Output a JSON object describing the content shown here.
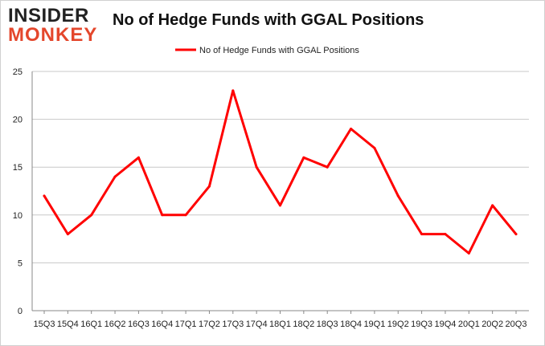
{
  "brand": {
    "logo_top": "INSIDER",
    "logo_bottom": "MONKEY"
  },
  "colors": {
    "series": "#ff0000",
    "grid": "#c8c8c8",
    "axis": "#888888",
    "logo_accent": "#e4472c"
  },
  "chart_data": {
    "type": "line",
    "title": "No of Hedge Funds with GGAL Positions",
    "xlabel": "",
    "ylabel": "",
    "ylim": [
      0,
      25
    ],
    "yticks": [
      0,
      5,
      10,
      15,
      20,
      25
    ],
    "grid": true,
    "legend_position": "top-center",
    "categories": [
      "15Q3",
      "15Q4",
      "16Q1",
      "16Q2",
      "16Q3",
      "16Q4",
      "17Q1",
      "17Q2",
      "17Q3",
      "17Q4",
      "18Q1",
      "18Q2",
      "18Q3",
      "18Q4",
      "19Q1",
      "19Q2",
      "19Q3",
      "19Q4",
      "20Q1",
      "20Q2",
      "20Q3"
    ],
    "series": [
      {
        "name": "No of Hedge Funds with GGAL Positions",
        "color": "#ff0000",
        "values": [
          12,
          8,
          10,
          14,
          16,
          10,
          10,
          13,
          23,
          15,
          11,
          16,
          15,
          19,
          17,
          12,
          8,
          8,
          6,
          11,
          8
        ]
      }
    ]
  }
}
